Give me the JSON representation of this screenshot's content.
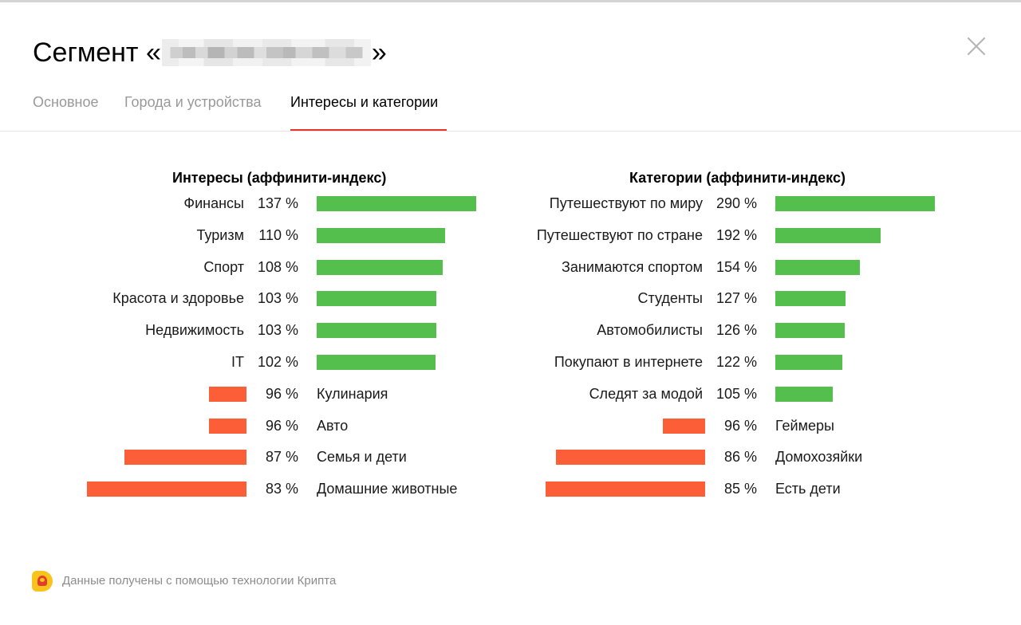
{
  "header": {
    "title_prefix": "Сегмент «",
    "title_suffix": "»"
  },
  "tabs": [
    {
      "label": "Основное"
    },
    {
      "label": "Города и устройства"
    },
    {
      "label": "Интересы и категории"
    }
  ],
  "colors": {
    "above_100": "#55bf4e",
    "below_100": "#fc5e37",
    "active_tab_underline": "#e5352b"
  },
  "icons": {
    "close": "close-icon",
    "footer_logo": "krypta-logo-icon"
  },
  "chart_data": [
    {
      "type": "bar",
      "title": "Интересы (аффинити-индекс)",
      "unit": "%",
      "baseline": 100,
      "categories": [
        "Финансы",
        "Туризм",
        "Спорт",
        "Красота и здоровье",
        "Недвижимость",
        "IT",
        "Кулинария",
        "Авто",
        "Семья и дети",
        "Домашние животные"
      ],
      "values": [
        137,
        110,
        108,
        103,
        103,
        102,
        96,
        96,
        87,
        83
      ]
    },
    {
      "type": "bar",
      "title": "Категории (аффинити-индекс)",
      "unit": "%",
      "baseline": 100,
      "categories": [
        "Путешествуют по миру",
        "Путешествуют по стране",
        "Занимаются спортом",
        "Студенты",
        "Автомобилисты",
        "Покупают в интернете",
        "Следят за модой",
        "Геймеры",
        "Домохозяйки",
        "Есть дети"
      ],
      "values": [
        290,
        192,
        154,
        127,
        126,
        122,
        105,
        96,
        86,
        85
      ]
    }
  ],
  "footer": {
    "text": "Данные получены с помощью технологии Крипта"
  }
}
